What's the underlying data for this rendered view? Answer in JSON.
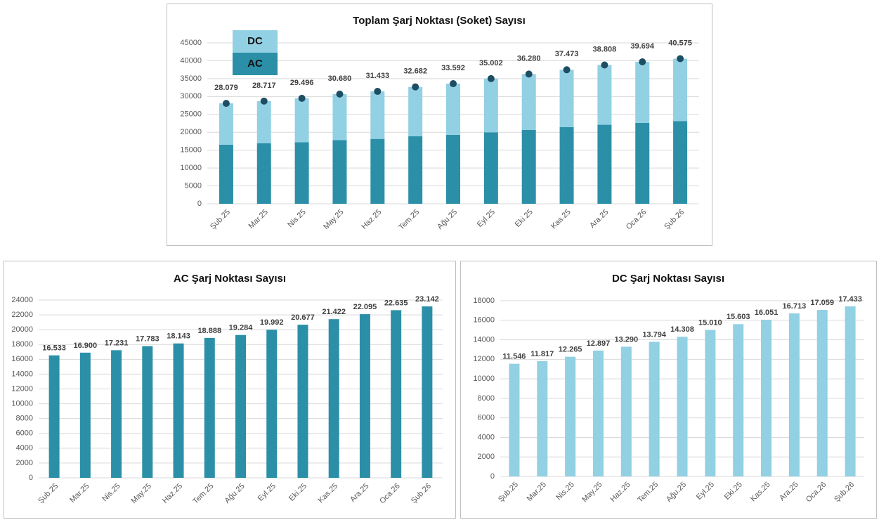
{
  "chart_data": [
    {
      "type": "stacked_bar",
      "title": "Toplam Şarj Noktası (Soket) Sayısı",
      "categories": [
        "Şub.25",
        "Mar.25",
        "Nis.25",
        "May.25",
        "Haz.25",
        "Tem.25",
        "Ağu.25",
        "Eyl.25",
        "Eki.25",
        "Kas.25",
        "Ara.25",
        "Oca.26",
        "Şub.26"
      ],
      "series": [
        {
          "name": "AC",
          "color": "#2b8fa8",
          "values": [
            16533,
            16900,
            17231,
            17783,
            18143,
            18888,
            19284,
            19992,
            20677,
            21422,
            22095,
            22635,
            23142
          ]
        },
        {
          "name": "DC",
          "color": "#92d0e3",
          "values": [
            11546,
            11817,
            12265,
            12897,
            13290,
            13794,
            14308,
            15010,
            15603,
            16051,
            16713,
            17059,
            17433
          ]
        }
      ],
      "totals": {
        "color": "#1d4e63",
        "values": [
          28079,
          28717,
          29496,
          30680,
          31433,
          32682,
          33592,
          35002,
          36280,
          37473,
          38808,
          39694,
          40575
        ],
        "value_labels": [
          "28.079",
          "28.717",
          "29.496",
          "30.680",
          "31.433",
          "32.682",
          "33.592",
          "35.002",
          "36.280",
          "37.473",
          "38.808",
          "39.694",
          "40.575"
        ]
      },
      "ylim": [
        0,
        45000
      ],
      "yticks": [
        0,
        5000,
        10000,
        15000,
        20000,
        25000,
        30000,
        35000,
        40000,
        45000
      ],
      "grid": true
    },
    {
      "type": "bar",
      "title": "AC Şarj Noktası Sayısı",
      "categories": [
        "Şub.25",
        "Mar.25",
        "Nis.25",
        "May.25",
        "Haz.25",
        "Tem.25",
        "Ağu.25",
        "Eyl.25",
        "Eki.25",
        "Kas.25",
        "Ara.25",
        "Oca.26",
        "Şub.26"
      ],
      "values": [
        16533,
        16900,
        17231,
        17783,
        18143,
        18888,
        19284,
        19992,
        20677,
        21422,
        22095,
        22635,
        23142
      ],
      "value_labels": [
        "16.533",
        "16.900",
        "17.231",
        "17.783",
        "18.143",
        "18.888",
        "19.284",
        "19.992",
        "20.677",
        "21.422",
        "22.095",
        "22.635",
        "23.142"
      ],
      "color": "#2b8fa8",
      "ylim": [
        0,
        24000
      ],
      "yticks": [
        0,
        2000,
        4000,
        6000,
        8000,
        10000,
        12000,
        14000,
        16000,
        18000,
        20000,
        22000,
        24000
      ],
      "grid": true
    },
    {
      "type": "bar",
      "title": "DC Şarj Noktası Sayısı",
      "categories": [
        "Şub.25",
        "Mar.25",
        "Nis.25",
        "May.25",
        "Haz.25",
        "Tem.25",
        "Ağu.25",
        "Eyl.25",
        "Eki.25",
        "Kas.25",
        "Ara.25",
        "Oca.26",
        "Şub.26"
      ],
      "values": [
        11546,
        11817,
        12265,
        12897,
        13290,
        13794,
        14308,
        15010,
        15603,
        16051,
        16713,
        17059,
        17433
      ],
      "value_labels": [
        "11.546",
        "11.817",
        "12.265",
        "12.897",
        "13.290",
        "13.794",
        "14.308",
        "15.010",
        "15.603",
        "16.051",
        "16.713",
        "17.059",
        "17.433"
      ],
      "color": "#92d0e3",
      "ylim": [
        0,
        18000
      ],
      "yticks": [
        0,
        2000,
        4000,
        6000,
        8000,
        10000,
        12000,
        14000,
        16000,
        18000
      ],
      "grid": true
    }
  ]
}
